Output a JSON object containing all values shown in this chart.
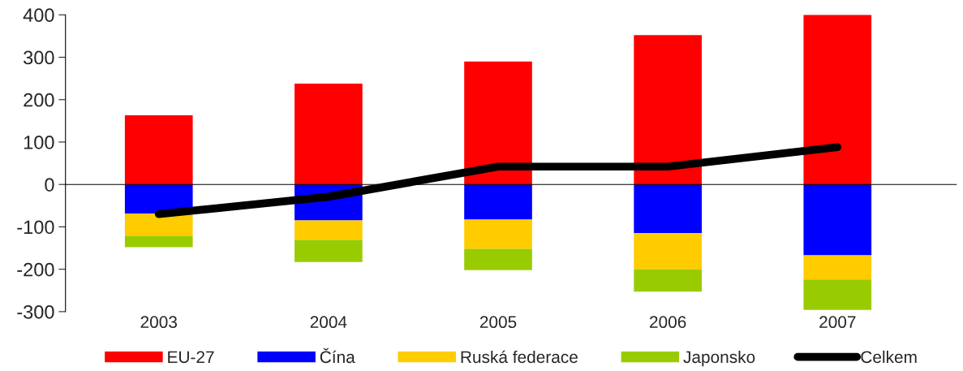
{
  "chart_data": {
    "type": "bar",
    "stacked": true,
    "categories": [
      "2003",
      "2004",
      "2005",
      "2006",
      "2007"
    ],
    "series": [
      {
        "name": "EU-27",
        "color": "#ff0000",
        "values": [
          163,
          238,
          290,
          352,
          400
        ]
      },
      {
        "name": "Čína",
        "color": "#0000ff",
        "values": [
          -69,
          -85,
          -83,
          -115,
          -167
        ]
      },
      {
        "name": "Ruská federace",
        "color": "#ffcc00",
        "values": [
          -52,
          -46,
          -69,
          -85,
          -57
        ]
      },
      {
        "name": "Japonsko",
        "color": "#99cc00",
        "values": [
          -27,
          -52,
          -50,
          -53,
          -72
        ]
      },
      {
        "name": "Celkem",
        "color": "#000000",
        "type": "line",
        "values": [
          -70,
          -29,
          42,
          42,
          88
        ]
      }
    ],
    "ylim": [
      -300,
      400
    ],
    "yticks": [
      -300,
      -200,
      -100,
      0,
      100,
      200,
      300,
      400
    ],
    "legend": "bottom"
  }
}
